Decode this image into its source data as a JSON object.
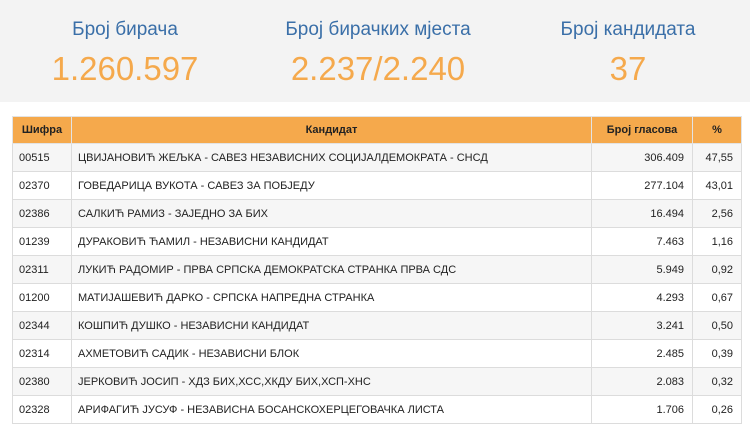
{
  "stats": {
    "voters_label": "Број бирача",
    "voters_value": "1.260.597",
    "stations_label": "Број бирачких мјеста",
    "stations_value": "2.237/2.240",
    "candidates_label": "Број кандидата",
    "candidates_value": "37"
  },
  "table": {
    "headers": [
      "Шифра",
      "Кандидат",
      "Број гласова",
      "%"
    ],
    "rows": [
      {
        "code": "00515",
        "name": "ЦВИЈАНОВИЋ ЖЕЉКА - САВЕЗ НЕЗАВИСНИХ СОЦИЈАЛДЕМОКРАТА - СНСД",
        "votes": "306.409",
        "pct": "47,55"
      },
      {
        "code": "02370",
        "name": "ГОВЕДАРИЦА ВУКОТА - САВЕЗ ЗА ПОБЈЕДУ",
        "votes": "277.104",
        "pct": "43,01"
      },
      {
        "code": "02386",
        "name": "САЛКИЋ РАМИЗ - ЗАЈЕДНО ЗА БИХ",
        "votes": "16.494",
        "pct": "2,56"
      },
      {
        "code": "01239",
        "name": "ДУРАКОВИЋ ЋАМИЛ - НЕЗАВИСНИ КАНДИДАТ",
        "votes": "7.463",
        "pct": "1,16"
      },
      {
        "code": "02311",
        "name": "ЛУКИЋ РАДОМИР - ПРВА СРПСКА ДЕМОКРАТСКА СТРАНКА ПРВА СДС",
        "votes": "5.949",
        "pct": "0,92"
      },
      {
        "code": "01200",
        "name": "МАТИЈАШЕВИЋ ДАРКО - СРПСКА НАПРЕДНА СТРАНКА",
        "votes": "4.293",
        "pct": "0,67"
      },
      {
        "code": "02344",
        "name": "КОШПИЋ ДУШКО - НЕЗАВИСНИ КАНДИДАТ",
        "votes": "3.241",
        "pct": "0,50"
      },
      {
        "code": "02314",
        "name": "АХМЕТОВИЋ САДИК - НЕЗАВИСНИ БЛОК",
        "votes": "2.485",
        "pct": "0,39"
      },
      {
        "code": "02380",
        "name": "ЈЕРКОВИЋ ЈОСИП - ХДЗ БИХ,ХСС,ХКДУ БИХ,ХСП-ХНС",
        "votes": "2.083",
        "pct": "0,32"
      },
      {
        "code": "02328",
        "name": "АРИФАГИЋ ЈУСУФ - НЕЗАВИСНА БОСАНСКОХЕРЦЕГОВАЧКА ЛИСТА",
        "votes": "1.706",
        "pct": "0,26"
      }
    ]
  },
  "colors": {
    "header_bg": "#f5a94c",
    "stat_label": "#3a6fa8",
    "stat_value": "#f5a94c",
    "stats_bg": "#f3f3f3"
  }
}
